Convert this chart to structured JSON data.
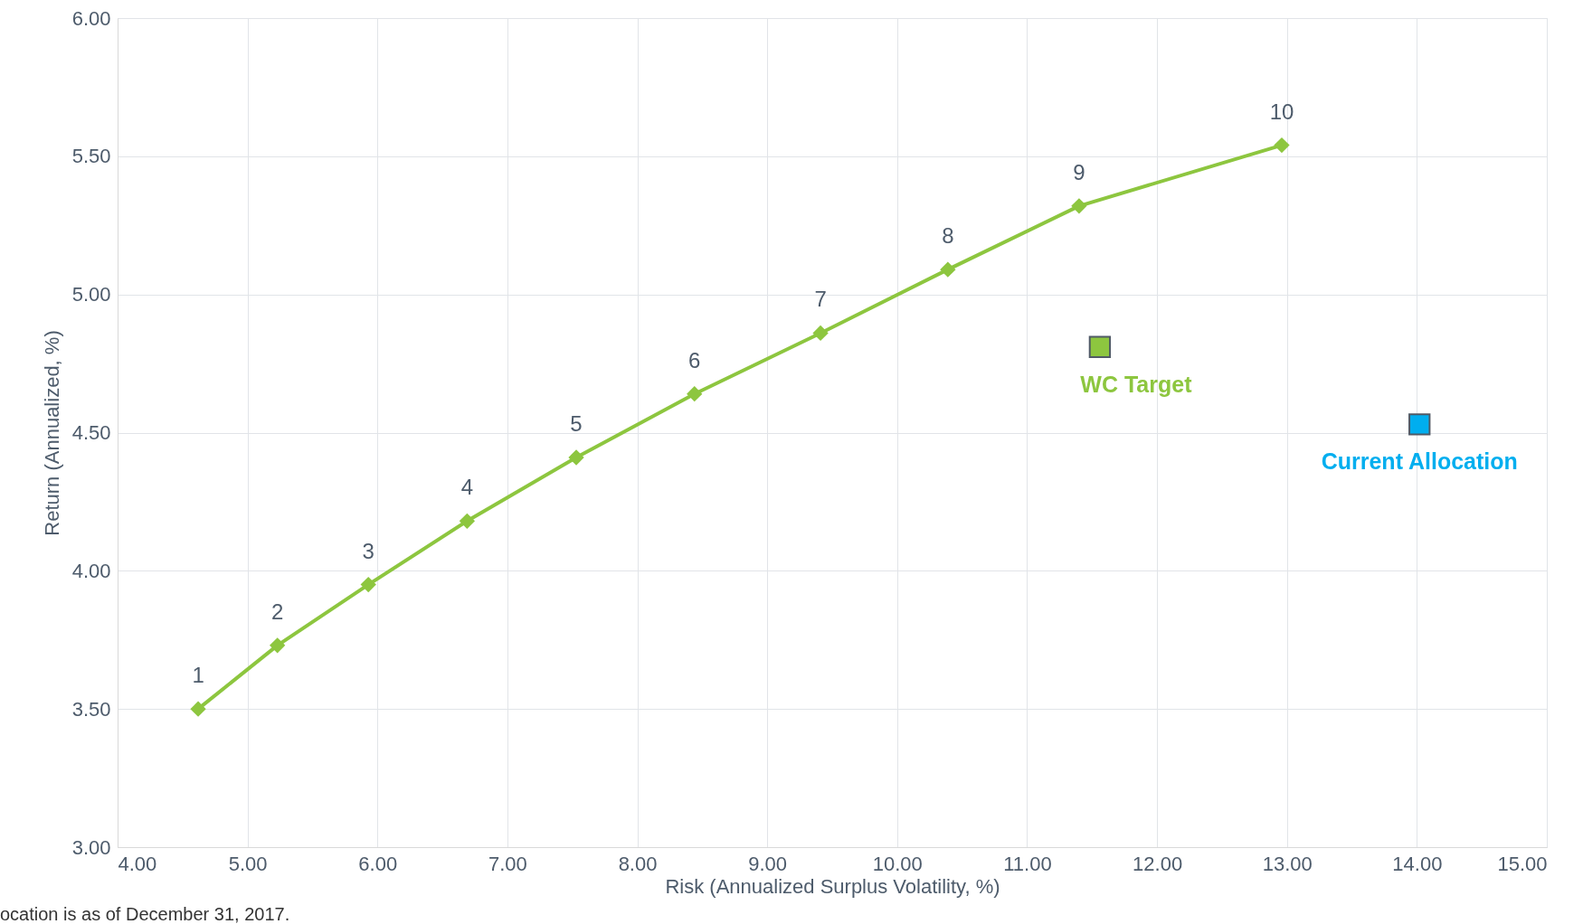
{
  "chart_data": {
    "type": "line",
    "xlabel": "Risk (Annualized Surplus Volatility, %)",
    "ylabel": "Return (Annualized, %)",
    "xlim": [
      4,
      15
    ],
    "xticks": [
      {
        "value": 4,
        "label": "4.00"
      },
      {
        "value": 5,
        "label": "5.00"
      },
      {
        "value": 6,
        "label": "6.00"
      },
      {
        "value": 7,
        "label": "7.00"
      },
      {
        "value": 8,
        "label": "8.00"
      },
      {
        "value": 9,
        "label": "9.00"
      },
      {
        "value": 10,
        "label": "10.00"
      },
      {
        "value": 11,
        "label": "11.00"
      },
      {
        "value": 12,
        "label": "12.00"
      },
      {
        "value": 13,
        "label": "13.00"
      },
      {
        "value": 14,
        "label": "14.00"
      },
      {
        "value": 15,
        "label": "15.00"
      }
    ],
    "ylim": [
      3,
      6
    ],
    "yticks": [
      {
        "value": 3,
        "label": "3.00"
      },
      {
        "value": 3.5,
        "label": "3.50"
      },
      {
        "value": 4,
        "label": "4.00"
      },
      {
        "value": 4.5,
        "label": "4.50"
      },
      {
        "value": 5,
        "label": "5.00"
      },
      {
        "value": 5.5,
        "label": "5.50"
      },
      {
        "value": 6,
        "label": "6.00"
      }
    ],
    "grid": true,
    "series": [
      {
        "marker": "diamond",
        "color": "#8dc63f",
        "x": [
          4.62,
          5.23,
          5.93,
          6.69,
          7.53,
          8.44,
          9.41,
          10.39,
          11.4,
          12.96
        ],
        "values": [
          3.5,
          3.73,
          3.95,
          4.18,
          4.41,
          4.64,
          4.86,
          5.09,
          5.32,
          5.54
        ]
      },
      {
        "type": "scatter",
        "marker": "square",
        "name": "WC Target",
        "color": "#8dc63f",
        "x": [
          11.56
        ],
        "values": [
          4.81
        ]
      },
      {
        "type": "scatter",
        "marker": "square",
        "name": "Current Allocation",
        "color": "#00aeef",
        "x": [
          14.02
        ],
        "values": [
          4.53
        ]
      }
    ],
    "annotations": [
      {
        "text": "1",
        "x": 4.62,
        "y": 3.5
      },
      {
        "text": "2",
        "x": 5.23,
        "y": 3.73
      },
      {
        "text": "3",
        "x": 5.93,
        "y": 3.95
      },
      {
        "text": "4",
        "x": 6.69,
        "y": 4.18
      },
      {
        "text": "5",
        "x": 7.53,
        "y": 4.41
      },
      {
        "text": "6",
        "x": 8.44,
        "y": 4.64
      },
      {
        "text": "7",
        "x": 9.41,
        "y": 4.86
      },
      {
        "text": "8",
        "x": 10.39,
        "y": 5.09
      },
      {
        "text": "9",
        "x": 11.4,
        "y": 5.32
      },
      {
        "text": "10",
        "x": 12.96,
        "y": 5.54
      },
      "ocation is as of December 31, 2017."
    ]
  }
}
